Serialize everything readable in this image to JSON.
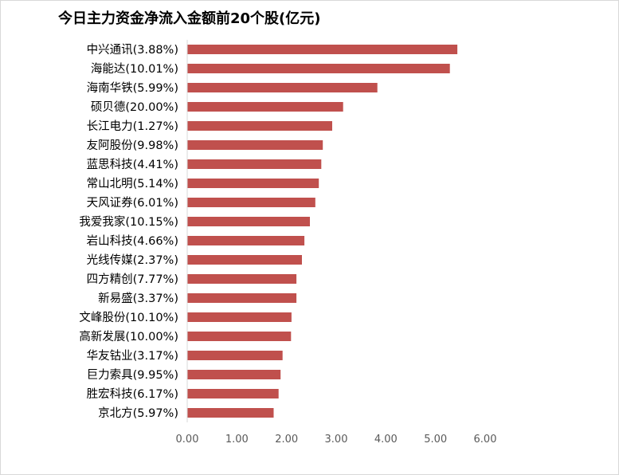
{
  "chart_data": {
    "type": "bar",
    "orientation": "horizontal",
    "title": "今日主力资金净流入金额前20个股(亿元)",
    "categories": [
      "中兴通讯(3.88%)",
      "海能达(10.01%)",
      "海南华铁(5.99%)",
      "硕贝德(20.00%)",
      "长江电力(1.27%)",
      "友阿股份(9.98%)",
      "蓝思科技(4.41%)",
      "常山北明(5.14%)",
      "天风证券(6.01%)",
      "我爱我家(10.15%)",
      "岩山科技(4.66%)",
      "光线传媒(2.37%)",
      "四方精创(7.77%)",
      "新易盛(3.37%)",
      "文峰股份(10.10%)",
      "高新发展(10.00%)",
      "华友钴业(3.17%)",
      "巨力索具(9.95%)",
      "胜宏科技(6.17%)",
      "京北方(5.97%)"
    ],
    "values": [
      5.44,
      5.29,
      3.83,
      3.14,
      2.92,
      2.73,
      2.7,
      2.65,
      2.58,
      2.47,
      2.36,
      2.31,
      2.2,
      2.2,
      2.1,
      2.09,
      1.92,
      1.88,
      1.84,
      1.74
    ],
    "xlim": [
      0,
      6
    ],
    "xticks": [
      "0.00",
      "1.00",
      "2.00",
      "3.00",
      "4.00",
      "5.00",
      "6.00"
    ],
    "xlabel": "",
    "ylabel": "",
    "grid": false,
    "bar_color": "#c0504d",
    "axis_color": "#d9d9d9"
  }
}
